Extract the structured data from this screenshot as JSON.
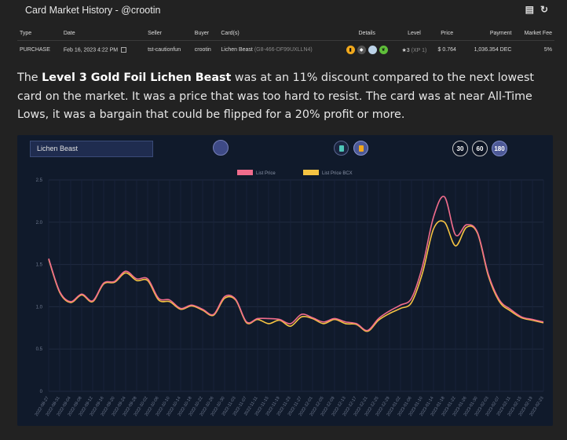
{
  "header": {
    "title": "Card Market History - @crootin"
  },
  "table": {
    "columns": [
      "Type",
      "Date",
      "Seller",
      "Buyer",
      "Card(s)",
      "Details",
      "Level",
      "Price",
      "Payment",
      "Market Fee"
    ],
    "row": {
      "type": "PURCHASE",
      "date": "Feb 16, 2023 4:22 PM",
      "seller": "tst-cautionfun",
      "buyer": "crootin",
      "card": "Lichen Beast",
      "card_id": "(G8-466-DF99UXLLN4)",
      "level": "3",
      "xp": "(XP 1)",
      "price": "$ 0.764",
      "payment": "1,036.354 DEC",
      "market_fee": "5%"
    }
  },
  "paragraph": {
    "pre": "The ",
    "bold": "Level 3 Gold Foil Lichen Beast",
    "post": " was at an 11% discount compared to the next lowest card on the market. It was a price that was too hard to resist. The card was at near All-Time Lows, it was a bargain that could be flipped for a 20% profit or more."
  },
  "chart_controls": {
    "search_value": "Lichen Beast",
    "day_buttons": [
      "30",
      "60",
      "180"
    ],
    "active_days": "180"
  },
  "chart_data": {
    "type": "line",
    "legend_position": "top-center",
    "grid": true,
    "ylim": [
      0,
      2.5
    ],
    "yticks": [
      "0",
      "0.5",
      "1.0",
      "1.5",
      "2.0",
      "2.5"
    ],
    "x": [
      "2022-08-27",
      "2022-08-31",
      "2022-09-04",
      "2022-09-08",
      "2022-09-12",
      "2022-09-16",
      "2022-09-20",
      "2022-09-24",
      "2022-09-28",
      "2022-10-02",
      "2022-10-06",
      "2022-10-10",
      "2022-10-14",
      "2022-10-18",
      "2022-10-22",
      "2022-10-26",
      "2022-10-30",
      "2022-11-03",
      "2022-11-07",
      "2022-11-11",
      "2022-11-15",
      "2022-11-19",
      "2022-11-23",
      "2022-11-27",
      "2022-12-01",
      "2022-12-05",
      "2022-12-09",
      "2022-12-13",
      "2022-12-17",
      "2022-12-21",
      "2022-12-25",
      "2022-12-29",
      "2023-01-02",
      "2023-01-06",
      "2023-01-10",
      "2023-01-14",
      "2023-01-18",
      "2023-01-22",
      "2023-01-26",
      "2023-01-30",
      "2023-02-03",
      "2023-02-07",
      "2023-02-11",
      "2023-02-15",
      "2023-02-19",
      "2023-02-23"
    ],
    "series": [
      {
        "name": "List Price",
        "color": "#f06c8c",
        "values": [
          1.57,
          1.18,
          1.06,
          1.15,
          1.07,
          1.28,
          1.3,
          1.42,
          1.33,
          1.33,
          1.1,
          1.08,
          0.98,
          1.02,
          0.97,
          0.91,
          1.12,
          1.09,
          0.82,
          0.86,
          0.86,
          0.85,
          0.8,
          0.91,
          0.87,
          0.82,
          0.86,
          0.82,
          0.8,
          0.72,
          0.86,
          0.95,
          1.02,
          1.1,
          1.48,
          2.06,
          2.3,
          1.85,
          1.97,
          1.88,
          1.38,
          1.08,
          0.97,
          0.88,
          0.85,
          0.82
        ]
      },
      {
        "name": "List Price BCX",
        "color": "#f5c342",
        "values": [
          1.56,
          1.17,
          1.05,
          1.14,
          1.06,
          1.27,
          1.29,
          1.4,
          1.31,
          1.31,
          1.08,
          1.06,
          0.97,
          1.01,
          0.96,
          0.9,
          1.1,
          1.08,
          0.81,
          0.85,
          0.8,
          0.84,
          0.77,
          0.88,
          0.86,
          0.8,
          0.85,
          0.8,
          0.79,
          0.71,
          0.84,
          0.92,
          0.98,
          1.05,
          1.4,
          1.92,
          2.0,
          1.72,
          1.94,
          1.87,
          1.36,
          1.06,
          0.95,
          0.87,
          0.84,
          0.81
        ]
      }
    ]
  }
}
